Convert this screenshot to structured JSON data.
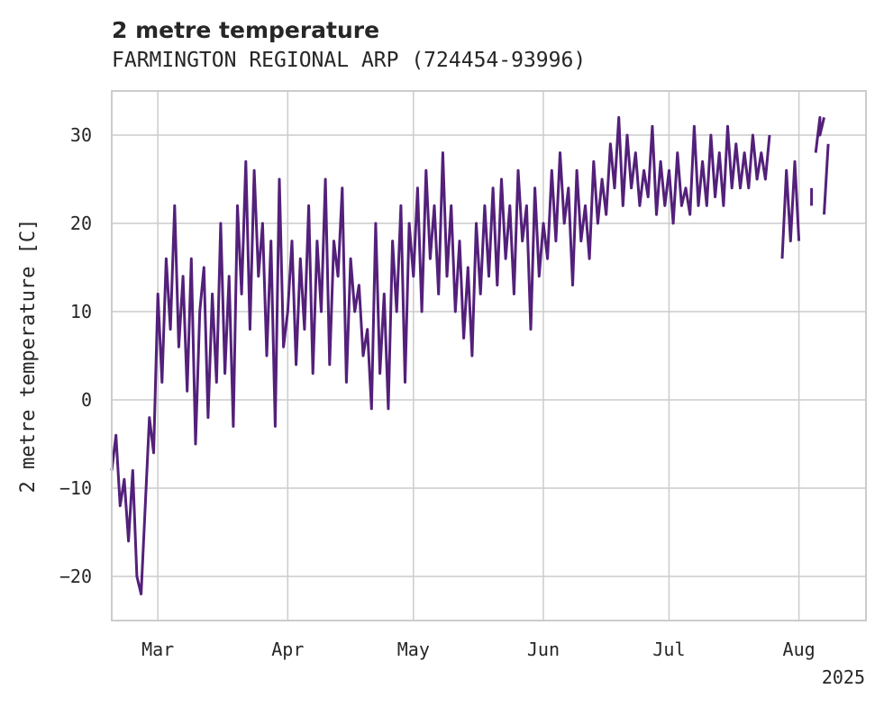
{
  "chart_data": {
    "type": "line",
    "title": "2 metre temperature",
    "subtitle": "FARMINGTON REGIONAL ARP (724454-93996)",
    "ylabel": "2 metre temperature [C]",
    "xlabel": "",
    "x_tick_labels": [
      "Mar",
      "Apr",
      "May",
      "Jun",
      "Jul",
      "Aug"
    ],
    "x_tick_dates": [
      "2025-03-01",
      "2025-04-01",
      "2025-05-01",
      "2025-06-01",
      "2025-07-01",
      "2025-08-01"
    ],
    "x_offset_label": "2025",
    "xlim": [
      "2025-02-18",
      "2025-08-17"
    ],
    "y_ticks": [
      -20,
      -10,
      0,
      10,
      20,
      30
    ],
    "y_tick_labels": [
      "−20",
      "−10",
      "0",
      "10",
      "20",
      "30"
    ],
    "ylim": [
      -25,
      35
    ],
    "grid": true,
    "line_color": "#53207a",
    "series": [
      {
        "points": [
          [
            "2025-02-18",
            -8
          ],
          [
            "2025-02-19",
            -4
          ],
          [
            "2025-02-20",
            -12
          ],
          [
            "2025-02-21",
            -9
          ],
          [
            "2025-02-22",
            -16
          ],
          [
            "2025-02-23",
            -8
          ],
          [
            "2025-02-24",
            -20
          ],
          [
            "2025-02-25",
            -22
          ],
          [
            "2025-02-26",
            -12
          ],
          [
            "2025-02-27",
            -2
          ],
          [
            "2025-02-28",
            -6
          ],
          [
            "2025-03-01",
            12
          ],
          [
            "2025-03-02",
            2
          ],
          [
            "2025-03-03",
            16
          ],
          [
            "2025-03-04",
            8
          ],
          [
            "2025-03-05",
            22
          ],
          [
            "2025-03-06",
            6
          ],
          [
            "2025-03-07",
            14
          ],
          [
            "2025-03-08",
            1
          ],
          [
            "2025-03-09",
            16
          ],
          [
            "2025-03-10",
            -5
          ],
          [
            "2025-03-11",
            10
          ],
          [
            "2025-03-12",
            15
          ],
          [
            "2025-03-13",
            -2
          ],
          [
            "2025-03-14",
            12
          ],
          [
            "2025-03-15",
            2
          ],
          [
            "2025-03-16",
            20
          ],
          [
            "2025-03-17",
            3
          ],
          [
            "2025-03-18",
            14
          ],
          [
            "2025-03-19",
            -3
          ],
          [
            "2025-03-20",
            22
          ],
          [
            "2025-03-21",
            12
          ],
          [
            "2025-03-22",
            27
          ],
          [
            "2025-03-23",
            8
          ],
          [
            "2025-03-24",
            26
          ],
          [
            "2025-03-25",
            14
          ],
          [
            "2025-03-26",
            20
          ],
          [
            "2025-03-27",
            5
          ],
          [
            "2025-03-28",
            18
          ],
          [
            "2025-03-29",
            -3
          ],
          [
            "2025-03-30",
            25
          ],
          [
            "2025-03-31",
            6
          ],
          [
            "2025-04-01",
            10
          ],
          [
            "2025-04-02",
            18
          ],
          [
            "2025-04-03",
            4
          ],
          [
            "2025-04-04",
            16
          ],
          [
            "2025-04-05",
            8
          ],
          [
            "2025-04-06",
            22
          ],
          [
            "2025-04-07",
            3
          ],
          [
            "2025-04-08",
            18
          ],
          [
            "2025-04-09",
            10
          ],
          [
            "2025-04-10",
            25
          ],
          [
            "2025-04-11",
            4
          ],
          [
            "2025-04-12",
            18
          ],
          [
            "2025-04-13",
            14
          ],
          [
            "2025-04-14",
            24
          ],
          [
            "2025-04-15",
            2
          ],
          [
            "2025-04-16",
            16
          ],
          [
            "2025-04-17",
            10
          ],
          [
            "2025-04-18",
            13
          ],
          [
            "2025-04-19",
            5
          ],
          [
            "2025-04-20",
            8
          ],
          [
            "2025-04-21",
            -1
          ],
          [
            "2025-04-22",
            20
          ],
          [
            "2025-04-23",
            3
          ],
          [
            "2025-04-24",
            12
          ],
          [
            "2025-04-25",
            -1
          ],
          [
            "2025-04-26",
            18
          ],
          [
            "2025-04-27",
            10
          ],
          [
            "2025-04-28",
            22
          ],
          [
            "2025-04-29",
            2
          ],
          [
            "2025-04-30",
            20
          ],
          [
            "2025-05-01",
            14
          ],
          [
            "2025-05-02",
            24
          ],
          [
            "2025-05-03",
            10
          ],
          [
            "2025-05-04",
            26
          ],
          [
            "2025-05-05",
            16
          ],
          [
            "2025-05-06",
            22
          ],
          [
            "2025-05-07",
            12
          ],
          [
            "2025-05-08",
            28
          ],
          [
            "2025-05-09",
            14
          ],
          [
            "2025-05-10",
            22
          ],
          [
            "2025-05-11",
            10
          ],
          [
            "2025-05-12",
            18
          ],
          [
            "2025-05-13",
            7
          ],
          [
            "2025-05-14",
            15
          ],
          [
            "2025-05-15",
            5
          ],
          [
            "2025-05-16",
            20
          ],
          [
            "2025-05-17",
            12
          ],
          [
            "2025-05-18",
            22
          ],
          [
            "2025-05-19",
            14
          ],
          [
            "2025-05-20",
            24
          ],
          [
            "2025-05-21",
            13
          ],
          [
            "2025-05-22",
            25
          ],
          [
            "2025-05-23",
            16
          ],
          [
            "2025-05-24",
            22
          ],
          [
            "2025-05-25",
            12
          ],
          [
            "2025-05-26",
            26
          ],
          [
            "2025-05-27",
            18
          ],
          [
            "2025-05-28",
            22
          ],
          [
            "2025-05-29",
            8
          ],
          [
            "2025-05-30",
            24
          ],
          [
            "2025-05-31",
            14
          ],
          [
            "2025-06-01",
            20
          ],
          [
            "2025-06-02",
            16
          ],
          [
            "2025-06-03",
            26
          ],
          [
            "2025-06-04",
            18
          ],
          [
            "2025-06-05",
            28
          ],
          [
            "2025-06-06",
            20
          ],
          [
            "2025-06-07",
            24
          ],
          [
            "2025-06-08",
            13
          ],
          [
            "2025-06-09",
            26
          ],
          [
            "2025-06-10",
            18
          ],
          [
            "2025-06-11",
            22
          ],
          [
            "2025-06-12",
            16
          ],
          [
            "2025-06-13",
            27
          ],
          [
            "2025-06-14",
            20
          ],
          [
            "2025-06-15",
            25
          ],
          [
            "2025-06-16",
            21
          ],
          [
            "2025-06-17",
            29
          ],
          [
            "2025-06-18",
            24
          ],
          [
            "2025-06-19",
            32
          ],
          [
            "2025-06-20",
            22
          ],
          [
            "2025-06-21",
            30
          ],
          [
            "2025-06-22",
            24
          ],
          [
            "2025-06-23",
            28
          ],
          [
            "2025-06-24",
            22
          ],
          [
            "2025-06-25",
            26
          ],
          [
            "2025-06-26",
            23
          ],
          [
            "2025-06-27",
            31
          ],
          [
            "2025-06-28",
            21
          ],
          [
            "2025-06-29",
            27
          ],
          [
            "2025-06-30",
            22
          ],
          [
            "2025-07-01",
            26
          ],
          [
            "2025-07-02",
            20
          ],
          [
            "2025-07-03",
            28
          ],
          [
            "2025-07-04",
            22
          ],
          [
            "2025-07-05",
            24
          ],
          [
            "2025-07-06",
            21
          ],
          [
            "2025-07-07",
            31
          ],
          [
            "2025-07-08",
            22
          ],
          [
            "2025-07-09",
            27
          ],
          [
            "2025-07-10",
            22
          ],
          [
            "2025-07-11",
            30
          ],
          [
            "2025-07-12",
            23
          ],
          [
            "2025-07-13",
            28
          ],
          [
            "2025-07-14",
            22
          ],
          [
            "2025-07-15",
            31
          ],
          [
            "2025-07-16",
            24
          ],
          [
            "2025-07-17",
            29
          ],
          [
            "2025-07-18",
            24
          ],
          [
            "2025-07-19",
            28
          ],
          [
            "2025-07-20",
            24
          ],
          [
            "2025-07-21",
            30
          ],
          [
            "2025-07-22",
            25
          ],
          [
            "2025-07-23",
            28
          ],
          [
            "2025-07-24",
            25
          ],
          [
            "2025-07-25",
            30
          ],
          null,
          [
            "2025-07-28",
            16
          ],
          [
            "2025-07-29",
            26
          ],
          [
            "2025-07-30",
            18
          ],
          [
            "2025-07-31",
            27
          ],
          [
            "2025-08-01",
            18
          ],
          null,
          [
            "2025-08-04",
            22
          ],
          [
            "2025-08-04",
            24
          ],
          null,
          [
            "2025-08-05",
            28
          ],
          [
            "2025-08-06",
            32
          ],
          [
            "2025-08-06",
            30
          ],
          [
            "2025-08-07",
            32
          ],
          null,
          [
            "2025-08-07",
            21
          ],
          [
            "2025-08-08",
            29
          ]
        ]
      }
    ]
  }
}
